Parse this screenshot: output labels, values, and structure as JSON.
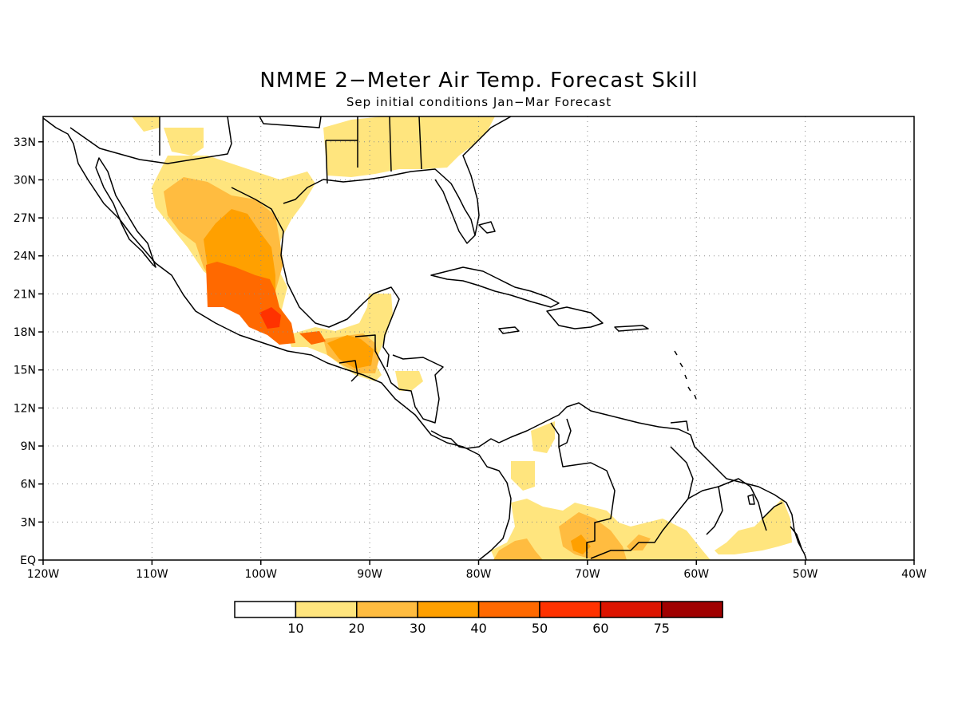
{
  "title": "NMME 2−Meter Air Temp. Forecast Skill",
  "subtitle": "Sep initial conditions   Jan−Mar Forecast",
  "map": {
    "lon_range": [
      -120,
      -40
    ],
    "lat_range": [
      0,
      35
    ],
    "x_ticks": [
      {
        "lon": -120,
        "label": "120W"
      },
      {
        "lon": -110,
        "label": "110W"
      },
      {
        "lon": -100,
        "label": "100W"
      },
      {
        "lon": -90,
        "label": "90W"
      },
      {
        "lon": -80,
        "label": "80W"
      },
      {
        "lon": -70,
        "label": "70W"
      },
      {
        "lon": -60,
        "label": "60W"
      },
      {
        "lon": -50,
        "label": "50W"
      },
      {
        "lon": -40,
        "label": "40W"
      }
    ],
    "y_ticks": [
      {
        "lat": 0,
        "label": "EQ"
      },
      {
        "lat": 3,
        "label": "3N"
      },
      {
        "lat": 6,
        "label": "6N"
      },
      {
        "lat": 9,
        "label": "9N"
      },
      {
        "lat": 12,
        "label": "12N"
      },
      {
        "lat": 15,
        "label": "15N"
      },
      {
        "lat": 18,
        "label": "18N"
      },
      {
        "lat": 21,
        "label": "21N"
      },
      {
        "lat": 24,
        "label": "24N"
      },
      {
        "lat": 27,
        "label": "27N"
      },
      {
        "lat": 30,
        "label": "30N"
      },
      {
        "lat": 33,
        "label": "33N"
      }
    ],
    "grid": true
  },
  "colorbar": {
    "labels": [
      "10",
      "20",
      "30",
      "40",
      "50",
      "60",
      "75"
    ],
    "colors": [
      "#ffffff",
      "#ffe57e",
      "#ffbc40",
      "#ffa000",
      "#ff6900",
      "#ff3200",
      "#dc1400",
      "#a00000"
    ]
  }
}
